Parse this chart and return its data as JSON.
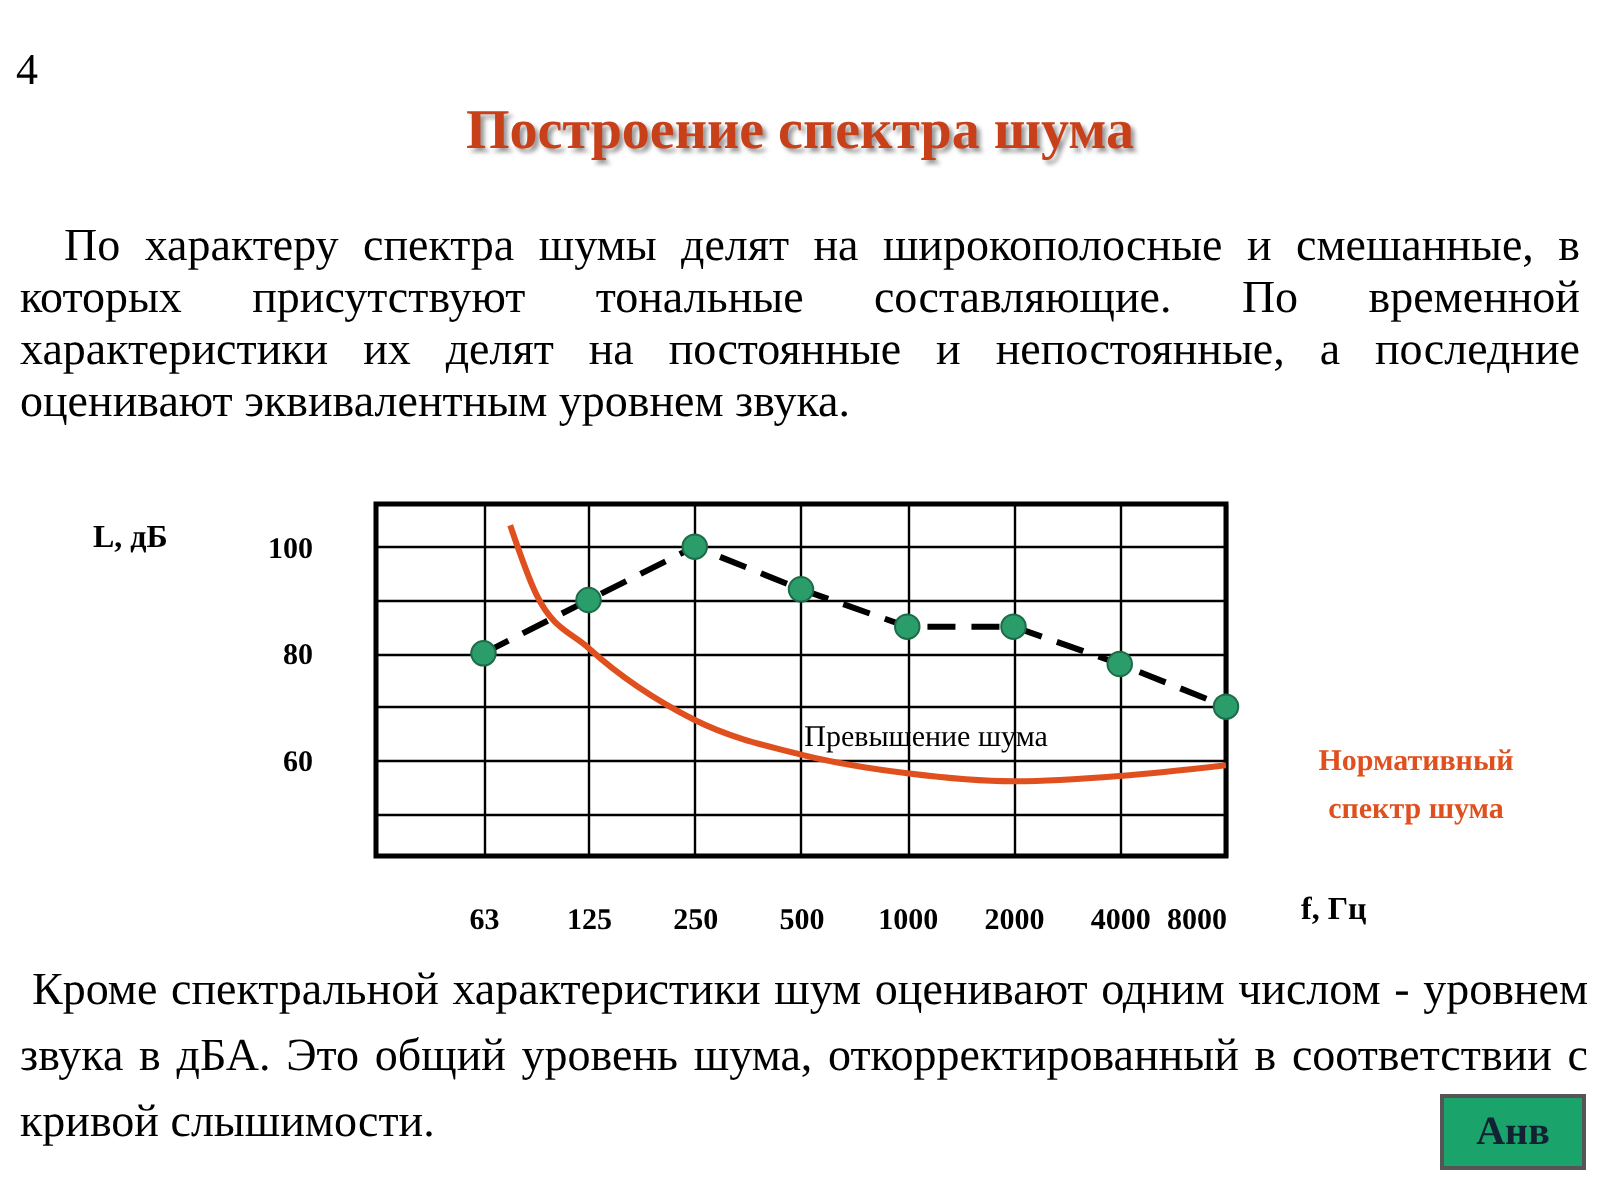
{
  "chart_data": {
    "type": "line",
    "title": "Построение спектра шума",
    "subtitle": "По характеру спектра шумы делят на широкополосные и смешанные, в которых присутствуют тональные составляющие. По временной характеристики их делят на постоянные и непостоянные, а последние оценивают эквивалентным уровнем звука.",
    "xlabel": "f, Гц",
    "ylabel": "L, дБ",
    "x": [
      63,
      125,
      250,
      500,
      1000,
      2000,
      4000,
      8000
    ],
    "series": [
      {
        "color": "#000000",
        "colors": [
          "#2a9d6a",
          "#2a9d6a",
          "#2a9d6a",
          "#2a9d6a",
          "#2a9d6a",
          "#2a9d6a",
          "#2a9d6a",
          "#2a9d6a"
        ],
        "marker": "circle",
        "line_style": "dashed",
        "values": [
          80,
          90,
          100,
          92,
          85,
          85,
          78,
          70
        ]
      },
      {
        "name": "Нормативный спектр шума",
        "color": "#e0501e",
        "marker": "none",
        "line_style": "solid",
        "x": [
          75,
          89,
          125,
          250,
          500,
          1000,
          2000,
          4000,
          8000
        ],
        "values": [
          104,
          91,
          81,
          67.5,
          61,
          57.5,
          56,
          57,
          59
        ]
      }
    ],
    "log": "x",
    "xlim": [
      31.25,
      8000
    ],
    "xticks": [
      63,
      125,
      250,
      500,
      1000,
      2000,
      4000,
      8000
    ],
    "ylim": [
      42,
      108
    ],
    "yticks": [
      {
        "value": 50,
        "label": null
      },
      60,
      {
        "value": 70,
        "label": null
      },
      80,
      {
        "value": 90,
        "label": null
      },
      100
    ],
    "grid": true,
    "legend": false,
    "annotations": [
      "4",
      "Превышение шума",
      "Кроме спектральной характеристики шум оценивают одним числом - уровнем звука в дБА. Это общий уровень шума, откорректированный в соответствии с кривой слышимости.",
      "Анв"
    ]
  }
}
